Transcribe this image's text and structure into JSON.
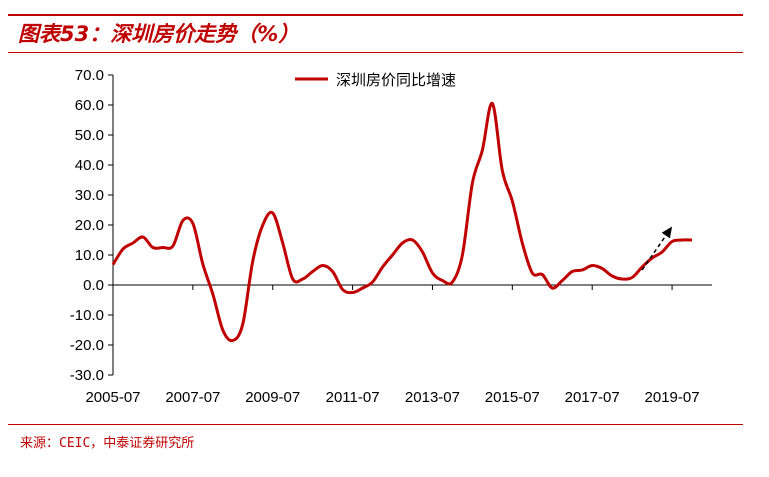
{
  "header": {
    "title": "图表53：深圳房价走势（%）"
  },
  "footer": {
    "source": "来源：CEIC，中泰证券研究所"
  },
  "colors": {
    "accent": "#c00000",
    "series": "#c00000",
    "arrow": "#000000"
  },
  "chart_data": {
    "type": "line",
    "title": "",
    "xlabel": "",
    "ylabel": "",
    "ylim": [
      -30,
      70
    ],
    "yticks": [
      "70.0",
      "60.0",
      "50.0",
      "40.0",
      "30.0",
      "20.0",
      "10.0",
      "0.0",
      "-10.0",
      "-20.0",
      "-30.0"
    ],
    "xticks": [
      "2005-07",
      "2007-07",
      "2009-07",
      "2011-07",
      "2013-07",
      "2015-07",
      "2017-07",
      "2019-07"
    ],
    "legend": {
      "position": "top-center"
    },
    "series": [
      {
        "name": "深圳房价同比增速",
        "x": [
          "2005-07",
          "2005-10",
          "2006-01",
          "2006-04",
          "2006-07",
          "2006-10",
          "2007-01",
          "2007-04",
          "2007-07",
          "2007-10",
          "2008-01",
          "2008-04",
          "2008-07",
          "2008-10",
          "2009-01",
          "2009-04",
          "2009-07",
          "2009-10",
          "2010-01",
          "2010-04",
          "2010-07",
          "2010-10",
          "2011-01",
          "2011-04",
          "2011-07",
          "2011-10",
          "2012-01",
          "2012-04",
          "2012-07",
          "2012-10",
          "2013-01",
          "2013-04",
          "2013-07",
          "2013-10",
          "2014-01",
          "2014-04",
          "2014-07",
          "2014-10",
          "2015-01",
          "2015-04",
          "2015-07",
          "2015-10",
          "2016-01",
          "2016-04",
          "2016-07",
          "2016-10",
          "2017-01",
          "2017-04",
          "2017-07",
          "2017-10",
          "2018-01",
          "2018-04",
          "2018-07",
          "2018-10",
          "2019-01",
          "2019-04",
          "2019-07",
          "2019-10",
          "2020-01"
        ],
        "values": [
          6.8,
          12.0,
          14.0,
          16.0,
          12.5,
          12.5,
          13.0,
          21.5,
          20.5,
          7.0,
          -3.0,
          -15.0,
          -18.5,
          -13.0,
          8.0,
          20.0,
          24.0,
          14.0,
          2.0,
          2.0,
          4.5,
          6.5,
          4.5,
          -1.5,
          -2.5,
          -1.0,
          1.0,
          6.0,
          10.0,
          14.0,
          15.0,
          11.0,
          4.0,
          1.5,
          1.0,
          10.0,
          34.0,
          45.0,
          60.5,
          38.0,
          28.0,
          14.0,
          4.0,
          3.5,
          -1.0,
          1.5,
          4.5,
          5.0,
          6.5,
          5.5,
          3.0,
          2.0,
          2.5,
          6.0,
          9.0,
          11.0,
          14.5,
          15.0,
          15.0
        ]
      }
    ],
    "annotations": [
      {
        "type": "arrow",
        "direction": "up-right",
        "style": "dashed",
        "from": [
          "2018-10",
          5.0
        ],
        "to": [
          "2019-07",
          19.5
        ]
      }
    ],
    "grid": false
  }
}
